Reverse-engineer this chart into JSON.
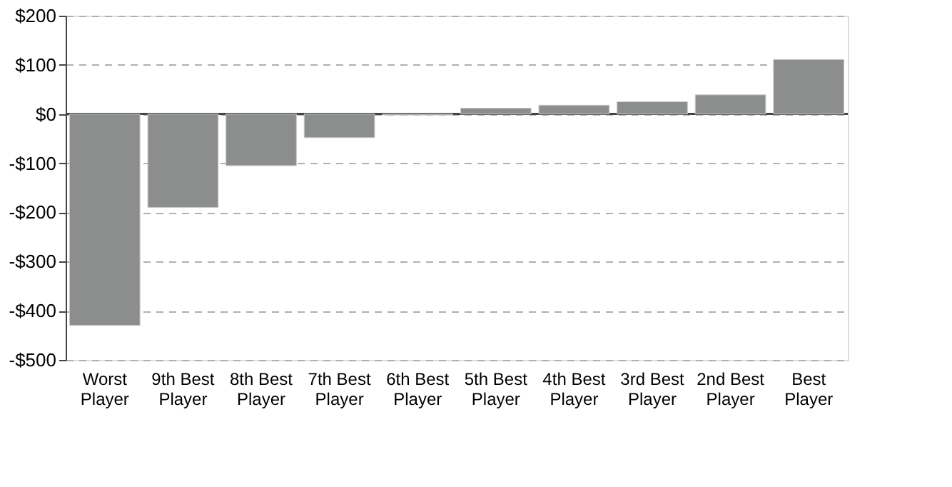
{
  "chart_data": {
    "type": "bar",
    "categories": [
      "Worst Player",
      "9th Best Player",
      "8th Best Player",
      "7th Best Player",
      "6th Best Player",
      "5th Best Player",
      "4th Best Player",
      "3rd Best Player",
      "2nd Best Player",
      "Best Player"
    ],
    "values": [
      -430,
      -190,
      -105,
      -48,
      -2,
      12,
      18,
      25,
      39,
      111
    ],
    "color": "#8c8e8e",
    "ylim": [
      -500,
      200
    ],
    "yticks": [
      {
        "value": -500,
        "label": "-$500"
      },
      {
        "value": -400,
        "label": "-$400"
      },
      {
        "value": -300,
        "label": "-$300"
      },
      {
        "value": -200,
        "label": "-$200"
      },
      {
        "value": -100,
        "label": "-$100"
      },
      {
        "value": 0,
        "label": "$0"
      },
      {
        "value": 100,
        "label": "$100"
      },
      {
        "value": 200,
        "label": "$200"
      }
    ],
    "grid": "y"
  }
}
